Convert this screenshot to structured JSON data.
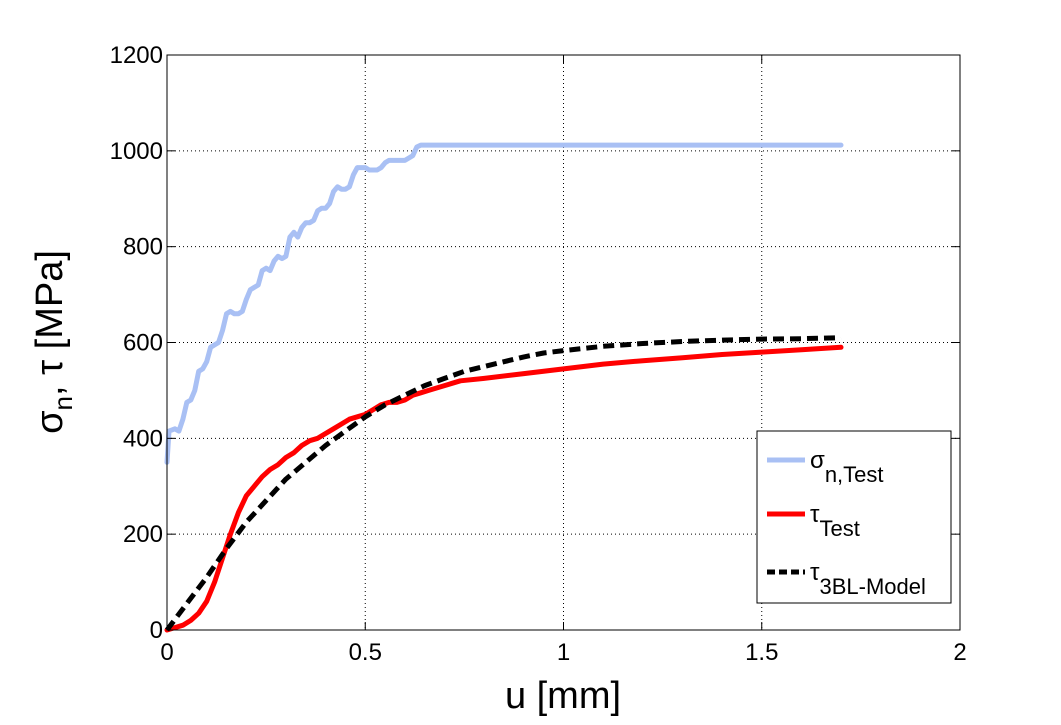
{
  "chart_data": {
    "type": "line",
    "title": "",
    "xlabel": "u [mm]",
    "ylabel": {
      "parts": [
        {
          "text": "σ",
          "baseline": "normal"
        },
        {
          "text": "n",
          "baseline": "sub"
        },
        {
          "text": ", τ [MPa]",
          "baseline": "normal"
        }
      ]
    },
    "xlim": [
      0,
      2
    ],
    "ylim": [
      0,
      1200
    ],
    "xticks": [
      0,
      0.5,
      1,
      1.5,
      2
    ],
    "xtick_labels": [
      "0",
      "0.5",
      "1",
      "1.5",
      "2"
    ],
    "yticks": [
      0,
      200,
      400,
      600,
      800,
      1000,
      1200
    ],
    "ytick_labels": [
      "0",
      "200",
      "400",
      "600",
      "800",
      "1000",
      "1200"
    ],
    "grid": true,
    "legend_position": "bottom-right",
    "series": [
      {
        "id": "sigma_n_test",
        "legend_main": "σ",
        "legend_sub": "n,Test",
        "color": "#a9c0f4",
        "dash": "solid",
        "x": [
          0,
          0.005,
          0.02,
          0.03,
          0.04,
          0.05,
          0.06,
          0.07,
          0.08,
          0.09,
          0.1,
          0.11,
          0.12,
          0.13,
          0.14,
          0.15,
          0.16,
          0.17,
          0.18,
          0.19,
          0.2,
          0.21,
          0.22,
          0.23,
          0.24,
          0.25,
          0.26,
          0.27,
          0.28,
          0.29,
          0.3,
          0.31,
          0.32,
          0.33,
          0.34,
          0.35,
          0.36,
          0.37,
          0.38,
          0.39,
          0.4,
          0.41,
          0.42,
          0.43,
          0.44,
          0.45,
          0.46,
          0.47,
          0.48,
          0.49,
          0.5,
          0.51,
          0.52,
          0.53,
          0.54,
          0.55,
          0.56,
          0.57,
          0.58,
          0.59,
          0.6,
          0.61,
          0.62,
          0.63,
          0.64,
          0.65,
          0.66,
          0.67,
          0.68,
          0.69,
          0.7,
          0.71,
          0.72,
          0.75,
          0.8,
          0.9,
          1.0,
          1.1,
          1.2,
          1.3,
          1.4,
          1.5,
          1.6,
          1.7
        ],
        "y": [
          350,
          415,
          420,
          415,
          440,
          475,
          480,
          500,
          540,
          545,
          560,
          590,
          595,
          600,
          625,
          660,
          665,
          660,
          660,
          665,
          690,
          710,
          715,
          720,
          750,
          755,
          750,
          770,
          780,
          775,
          780,
          820,
          830,
          820,
          840,
          850,
          850,
          855,
          875,
          880,
          880,
          890,
          915,
          925,
          920,
          920,
          925,
          950,
          965,
          965,
          965,
          960,
          960,
          960,
          965,
          975,
          980,
          980,
          980,
          980,
          980,
          985,
          990,
          1008,
          1012,
          1012,
          1012,
          1012,
          1012,
          1012,
          1012,
          1012,
          1012,
          1012,
          1012,
          1012,
          1012,
          1012,
          1012,
          1012,
          1012,
          1012,
          1012,
          1012
        ]
      },
      {
        "id": "tau_test",
        "legend_main": "τ",
        "legend_sub": "Test",
        "color": "#ff0000",
        "dash": "solid",
        "x": [
          0,
          0.02,
          0.04,
          0.06,
          0.08,
          0.1,
          0.12,
          0.14,
          0.16,
          0.18,
          0.2,
          0.22,
          0.24,
          0.26,
          0.28,
          0.3,
          0.32,
          0.34,
          0.36,
          0.38,
          0.4,
          0.42,
          0.44,
          0.46,
          0.48,
          0.5,
          0.52,
          0.54,
          0.56,
          0.58,
          0.6,
          0.62,
          0.64,
          0.66,
          0.68,
          0.7,
          0.72,
          0.74,
          0.8,
          0.9,
          1.0,
          1.1,
          1.2,
          1.3,
          1.4,
          1.5,
          1.6,
          1.7
        ],
        "y": [
          0,
          5,
          10,
          20,
          35,
          60,
          100,
          150,
          200,
          245,
          280,
          300,
          320,
          335,
          345,
          360,
          370,
          385,
          395,
          400,
          410,
          420,
          430,
          440,
          445,
          450,
          460,
          470,
          475,
          475,
          480,
          490,
          495,
          500,
          505,
          510,
          515,
          520,
          525,
          535,
          545,
          555,
          562,
          568,
          575,
          580,
          585,
          590
        ]
      },
      {
        "id": "tau_3bl_model",
        "legend_main": "τ",
        "legend_sub": "3BL-Model",
        "color": "#000000",
        "dash": "dashed",
        "x": [
          0,
          0.05,
          0.1,
          0.15,
          0.2,
          0.25,
          0.3,
          0.35,
          0.4,
          0.45,
          0.5,
          0.55,
          0.6,
          0.65,
          0.7,
          0.75,
          0.8,
          0.85,
          0.9,
          0.95,
          1.0,
          1.1,
          1.2,
          1.3,
          1.4,
          1.5,
          1.6,
          1.7
        ],
        "y": [
          0,
          55,
          110,
          170,
          225,
          270,
          315,
          350,
          385,
          415,
          445,
          470,
          490,
          510,
          525,
          540,
          550,
          560,
          570,
          578,
          583,
          592,
          598,
          602,
          605,
          607,
          608,
          610
        ]
      }
    ]
  }
}
